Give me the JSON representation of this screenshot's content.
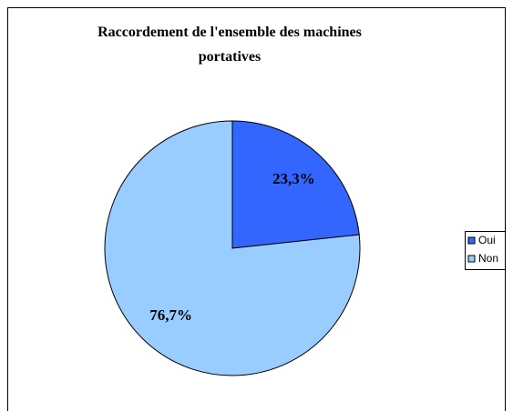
{
  "chart_data": {
    "type": "pie",
    "title": "Raccordement de l'ensemble des machines portatives",
    "categories": [
      "Oui",
      "Non"
    ],
    "values": [
      23.3,
      76.7
    ],
    "value_labels": [
      "23,3%",
      "76,7%"
    ],
    "colors": [
      "#3366ff",
      "#99ccff"
    ],
    "legend": "right"
  }
}
